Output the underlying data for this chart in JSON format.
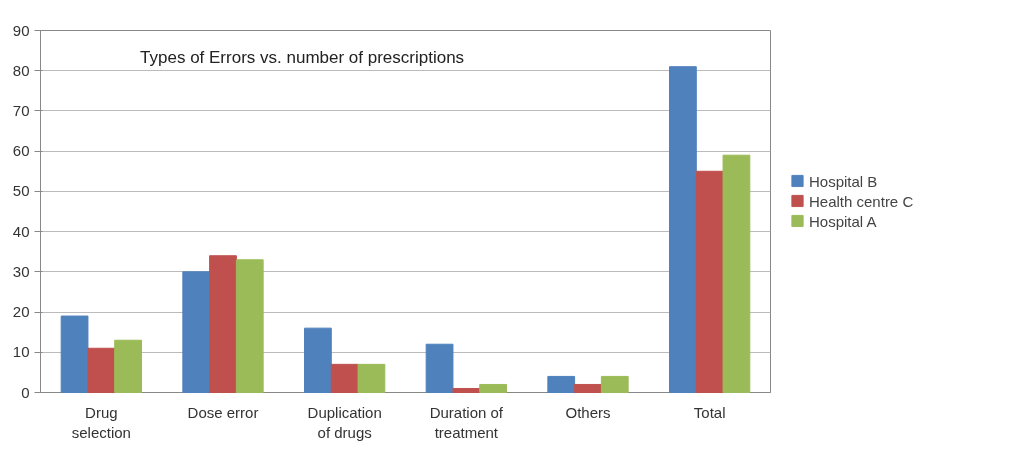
{
  "chart_data": {
    "type": "bar",
    "title": "Types of Errors vs. number of prescriptions",
    "categories": [
      "Drug selection",
      "Dose error",
      "Duplication of drugs",
      "Duration of treatment",
      "Others",
      "Total"
    ],
    "series": [
      {
        "name": "Hospital B",
        "color": "#4f81bd",
        "values": [
          19,
          30,
          16,
          12,
          4,
          81
        ]
      },
      {
        "name": "Health centre C",
        "color": "#c0504d",
        "values": [
          11,
          34,
          7,
          1,
          2,
          55
        ]
      },
      {
        "name": "Hospital A",
        "color": "#9bbb59",
        "values": [
          13,
          33,
          7,
          2,
          4,
          59
        ]
      }
    ],
    "ylim": [
      0,
      90
    ],
    "yticks": [
      0,
      10,
      20,
      30,
      40,
      50,
      60,
      70,
      80,
      90
    ],
    "grid": "y",
    "legend": "right"
  }
}
